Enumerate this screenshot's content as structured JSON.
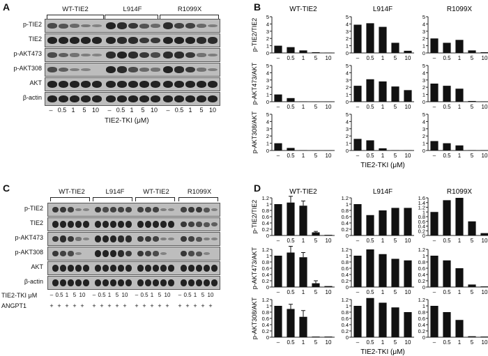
{
  "panels": {
    "A": {
      "letter": "A",
      "groups": [
        "WT-TIE2",
        "L914F",
        "R1099X"
      ],
      "rows": [
        "p-TIE2",
        "TIE2",
        "p-AKT473",
        "p-AKT308",
        "AKT",
        "β-actin"
      ],
      "doses": [
        "–",
        "0.5",
        "1",
        "5",
        "10"
      ],
      "xlabel": "TIE2-TKI (μM)"
    },
    "B": {
      "letter": "B",
      "groups": [
        "WT-TIE2",
        "L914F",
        "R1099X"
      ],
      "ylabels": [
        "p-TIE2/TIE2",
        "p-AKT473/AKT",
        "p-AKT308/AKT"
      ],
      "xlabel": "TIE2-TKI (μM)"
    },
    "C": {
      "letter": "C",
      "groups": [
        "WT-TIE2",
        "L914F",
        "WT-TIE2",
        "R1099X"
      ],
      "rows": [
        "p-TIE2",
        "TIE2",
        "p-AKT473",
        "p-AKT308",
        "AKT",
        "β-actin"
      ],
      "tki_label": "TIE2-TKI μM",
      "angpt_label": "ANGPT1",
      "doses": [
        "–",
        "0.5",
        "1",
        "5",
        "10"
      ],
      "plus": "+"
    },
    "D": {
      "letter": "D",
      "groups": [
        "WT-TIE2",
        "L914F",
        "R1099X"
      ],
      "ylabels": [
        "p-TIE2/TIE2",
        "p-AKT473/AKT",
        "p-AKT308/AKT"
      ],
      "xlabel": "TIE2-TKI (μM)"
    }
  },
  "chart_data": [
    {
      "type": "bar",
      "panel": "B",
      "categories": [
        "–",
        "0.5",
        "1",
        "5",
        "10"
      ],
      "ylim": [
        0,
        5
      ],
      "yticks": [
        0,
        1,
        2,
        3,
        4,
        5
      ],
      "xlabel": "TIE2-TKI (μM)",
      "rows": [
        {
          "ylabel": "p-TIE2/TIE2",
          "series": [
            {
              "group": "WT-TIE2",
              "values": [
                1.0,
                0.8,
                0.35,
                0.1,
                0.05
              ]
            },
            {
              "group": "L914F",
              "values": [
                3.9,
                4.1,
                3.6,
                1.4,
                0.3
              ]
            },
            {
              "group": "R1099X",
              "values": [
                2.0,
                1.4,
                1.8,
                0.35,
                0.1
              ]
            }
          ]
        },
        {
          "ylabel": "p-AKT473/AKT",
          "series": [
            {
              "group": "WT-TIE2",
              "values": [
                1.0,
                0.5,
                0.05,
                0.02,
                0.02
              ]
            },
            {
              "group": "L914F",
              "values": [
                2.2,
                3.1,
                2.8,
                2.1,
                1.6
              ]
            },
            {
              "group": "R1099X",
              "values": [
                2.5,
                2.2,
                1.8,
                0.1,
                0.05
              ]
            }
          ]
        },
        {
          "ylabel": "p-AKT308/AKT",
          "series": [
            {
              "group": "WT-TIE2",
              "values": [
                1.0,
                0.35,
                0.05,
                0.02,
                0.02
              ]
            },
            {
              "group": "L914F",
              "values": [
                1.6,
                1.4,
                0.3,
                0.05,
                0.05
              ]
            },
            {
              "group": "R1099X",
              "values": [
                1.3,
                1.0,
                0.7,
                0.05,
                0.05
              ]
            }
          ]
        }
      ]
    },
    {
      "type": "bar",
      "panel": "D",
      "categories": [
        "–",
        "0.5",
        "1",
        "5",
        "10"
      ],
      "xlabel": "TIE2-TKI (μM)",
      "rows": [
        {
          "ylabel": "p-TIE2/TIE2",
          "series": [
            {
              "group": "WT-TIE2",
              "ylim": [
                0,
                1.2
              ],
              "yticks": [
                0,
                0.2,
                0.4,
                0.6,
                0.8,
                1.0,
                1.2
              ],
              "values": [
                1.0,
                1.05,
                0.95,
                0.1,
                0.02
              ],
              "errors": [
                0,
                0.2,
                0.15,
                0.03,
                0
              ]
            },
            {
              "group": "L914F",
              "ylim": [
                0,
                1.2
              ],
              "yticks": [
                0,
                0.2,
                0.4,
                0.6,
                0.8,
                1.0,
                1.2
              ],
              "values": [
                1.0,
                0.65,
                0.8,
                0.88,
                0.88
              ],
              "errors": [
                0,
                0,
                0,
                0,
                0
              ]
            },
            {
              "group": "R1099X",
              "ylim": [
                0,
                1.6
              ],
              "yticks": [
                0,
                0.2,
                0.4,
                0.6,
                0.8,
                1.0,
                1.2,
                1.4,
                1.6
              ],
              "values": [
                1.0,
                1.5,
                1.6,
                0.6,
                0.1
              ],
              "errors": [
                0,
                0,
                0,
                0,
                0
              ]
            }
          ]
        },
        {
          "ylabel": "p-AKT473/AKT",
          "series": [
            {
              "group": "WT-TIE2",
              "ylim": [
                0,
                1.2
              ],
              "yticks": [
                0,
                0.2,
                0.4,
                0.6,
                0.8,
                1.0,
                1.2
              ],
              "values": [
                1.0,
                1.1,
                0.95,
                0.12,
                0.03
              ],
              "errors": [
                0,
                0.2,
                0.15,
                0.08,
                0
              ]
            },
            {
              "group": "L914F",
              "ylim": [
                0,
                1.2
              ],
              "yticks": [
                0,
                0.2,
                0.4,
                0.6,
                0.8,
                1.0,
                1.2
              ],
              "values": [
                1.0,
                1.2,
                1.05,
                0.9,
                0.85
              ],
              "errors": [
                0,
                0,
                0,
                0,
                0
              ]
            },
            {
              "group": "R1099X",
              "ylim": [
                0,
                1.2
              ],
              "yticks": [
                0,
                0.2,
                0.4,
                0.6,
                0.8,
                1.0,
                1.2
              ],
              "values": [
                1.0,
                0.85,
                0.6,
                0.08,
                0.02
              ],
              "errors": [
                0,
                0,
                0,
                0,
                0
              ]
            }
          ]
        },
        {
          "ylabel": "p-AKT308/AKT",
          "series": [
            {
              "group": "WT-TIE2",
              "ylim": [
                0,
                1.2
              ],
              "yticks": [
                0,
                0.2,
                0.4,
                0.6,
                0.8,
                1.0,
                1.2
              ],
              "values": [
                1.0,
                0.9,
                0.65,
                0.02,
                0.02
              ],
              "errors": [
                0,
                0.15,
                0.2,
                0,
                0
              ]
            },
            {
              "group": "L914F",
              "ylim": [
                0,
                1.2
              ],
              "yticks": [
                0,
                0.2,
                0.4,
                0.6,
                0.8,
                1.0,
                1.2
              ],
              "values": [
                1.0,
                1.25,
                1.1,
                0.95,
                0.8
              ],
              "errors": [
                0,
                0,
                0,
                0,
                0
              ]
            },
            {
              "group": "R1099X",
              "ylim": [
                0,
                1.2
              ],
              "yticks": [
                0,
                0.2,
                0.4,
                0.6,
                0.8,
                1.0,
                1.2
              ],
              "values": [
                1.0,
                0.8,
                0.55,
                0.03,
                0.02
              ],
              "errors": [
                0,
                0,
                0,
                0,
                0
              ]
            }
          ]
        }
      ]
    }
  ]
}
